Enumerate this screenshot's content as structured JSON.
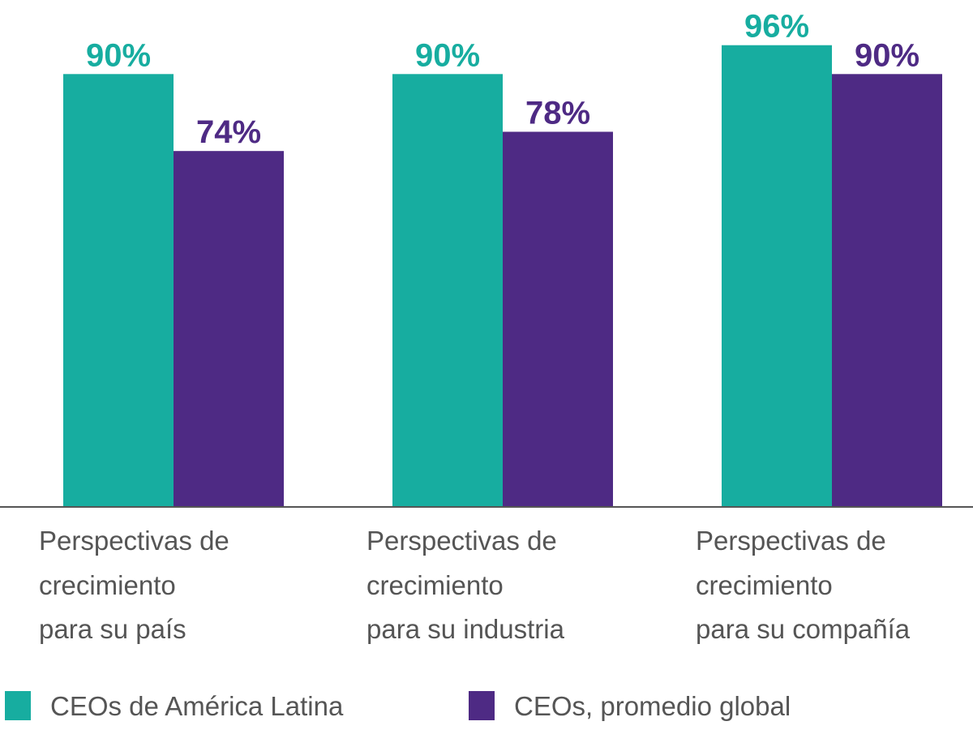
{
  "chart_data": {
    "type": "bar",
    "title": "",
    "xlabel": "",
    "ylabel": "",
    "ylim": [
      0,
      100
    ],
    "grid": false,
    "legend_position": "bottom",
    "categories": [
      [
        "Perspectivas de",
        "crecimiento",
        "para su país"
      ],
      [
        "Perspectivas de",
        "crecimiento",
        "para su industria"
      ],
      [
        "Perspectivas de",
        "crecimiento",
        "para su compañía"
      ]
    ],
    "series": [
      {
        "name": "CEOs de América Latina",
        "color": "#17ADA0",
        "values": [
          90,
          90,
          96
        ],
        "labels": [
          "90%",
          "90%",
          "96%"
        ]
      },
      {
        "name": "CEOs, promedio global",
        "color": "#4E2A84",
        "values": [
          74,
          78,
          90
        ],
        "labels": [
          "74%",
          "78%",
          "90%"
        ]
      }
    ]
  }
}
